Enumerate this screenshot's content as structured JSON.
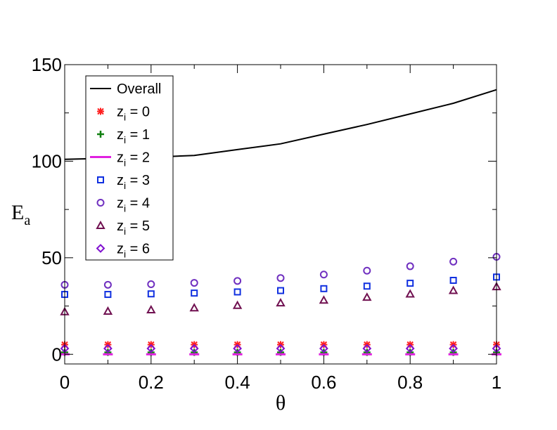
{
  "chart_data": {
    "type": "scatter",
    "xlabel": "θ",
    "ylabel": "E",
    "ylabel_subscript": "a",
    "xlim": [
      0,
      1
    ],
    "ylim": [
      -5,
      150
    ],
    "xticks": [
      "0",
      "0.2",
      "0.4",
      "0.6",
      "0.8",
      "1"
    ],
    "xtick_values": [
      0,
      0.2,
      0.4,
      0.6,
      0.8,
      1
    ],
    "yticks": [
      "0",
      "50",
      "100",
      "150"
    ],
    "ytick_values": [
      0,
      50,
      100,
      150
    ],
    "legend_position": "top-left",
    "legend_prefix": "z",
    "legend_subscript": "i",
    "series": [
      {
        "name": "Overall",
        "label": "Overall",
        "marker": "line",
        "color": "#000000",
        "x": [
          0,
          0.1,
          0.2,
          0.3,
          0.4,
          0.5,
          0.6,
          0.7,
          0.8,
          0.9,
          1.0
        ],
        "values": [
          101,
          101.5,
          102,
          103,
          106,
          109,
          114,
          119,
          124.5,
          130,
          137
        ]
      },
      {
        "name": "zi = 0",
        "label": " = 0",
        "marker": "asterisk",
        "color": "#ff2020",
        "x": [
          0,
          0.1,
          0.2,
          0.3,
          0.4,
          0.5,
          0.6,
          0.7,
          0.8,
          0.9,
          1.0
        ],
        "values": [
          5,
          5,
          5,
          5,
          5,
          5,
          5,
          5,
          5,
          5,
          5
        ]
      },
      {
        "name": "zi = 1",
        "label": " = 1",
        "marker": "plus",
        "color": "#108010",
        "x": [
          0,
          0.1,
          0.2,
          0.3,
          0.4,
          0.5,
          0.6,
          0.7,
          0.8,
          0.9,
          1.0
        ],
        "values": [
          1,
          1,
          1,
          1,
          1,
          1,
          1,
          1,
          1,
          1,
          1
        ]
      },
      {
        "name": "zi = 2",
        "label": " = 2",
        "marker": "dash",
        "color": "#e020e0",
        "x": [
          0,
          0.1,
          0.2,
          0.3,
          0.4,
          0.5,
          0.6,
          0.7,
          0.8,
          0.9,
          1.0
        ],
        "values": [
          0,
          0,
          0,
          0,
          0,
          0,
          0,
          0,
          0,
          0,
          0
        ]
      },
      {
        "name": "zi = 3",
        "label": " = 3",
        "marker": "square",
        "color": "#1030e0",
        "x": [
          0,
          0.1,
          0.2,
          0.3,
          0.4,
          0.5,
          0.6,
          0.7,
          0.8,
          0.9,
          1.0
        ],
        "values": [
          31,
          31,
          31.3,
          31.7,
          32.3,
          33,
          34,
          35.3,
          36.8,
          38.3,
          40
        ]
      },
      {
        "name": "zi = 4",
        "label": " = 4",
        "marker": "circle",
        "color": "#7030c0",
        "x": [
          0,
          0.1,
          0.2,
          0.3,
          0.4,
          0.5,
          0.6,
          0.7,
          0.8,
          0.9,
          1.0
        ],
        "values": [
          36,
          36,
          36.3,
          37,
          38,
          39.5,
          41.3,
          43.3,
          45.6,
          48,
          50.5
        ]
      },
      {
        "name": "zi = 5",
        "label": " = 5",
        "marker": "triangle",
        "color": "#701050",
        "x": [
          0,
          0.1,
          0.2,
          0.3,
          0.4,
          0.5,
          0.6,
          0.7,
          0.8,
          0.9,
          1.0
        ],
        "values": [
          22,
          22.3,
          23,
          24,
          25.3,
          26.6,
          28,
          29.5,
          31.2,
          33,
          35
        ]
      },
      {
        "name": "zi = 6",
        "label": " = 6",
        "marker": "diamond",
        "color": "#8010d0",
        "x": [
          0,
          0.1,
          0.2,
          0.3,
          0.4,
          0.5,
          0.6,
          0.7,
          0.8,
          0.9,
          1.0
        ],
        "values": [
          3,
          3,
          3,
          3,
          3,
          3,
          3,
          3,
          3,
          3,
          3
        ]
      }
    ]
  }
}
